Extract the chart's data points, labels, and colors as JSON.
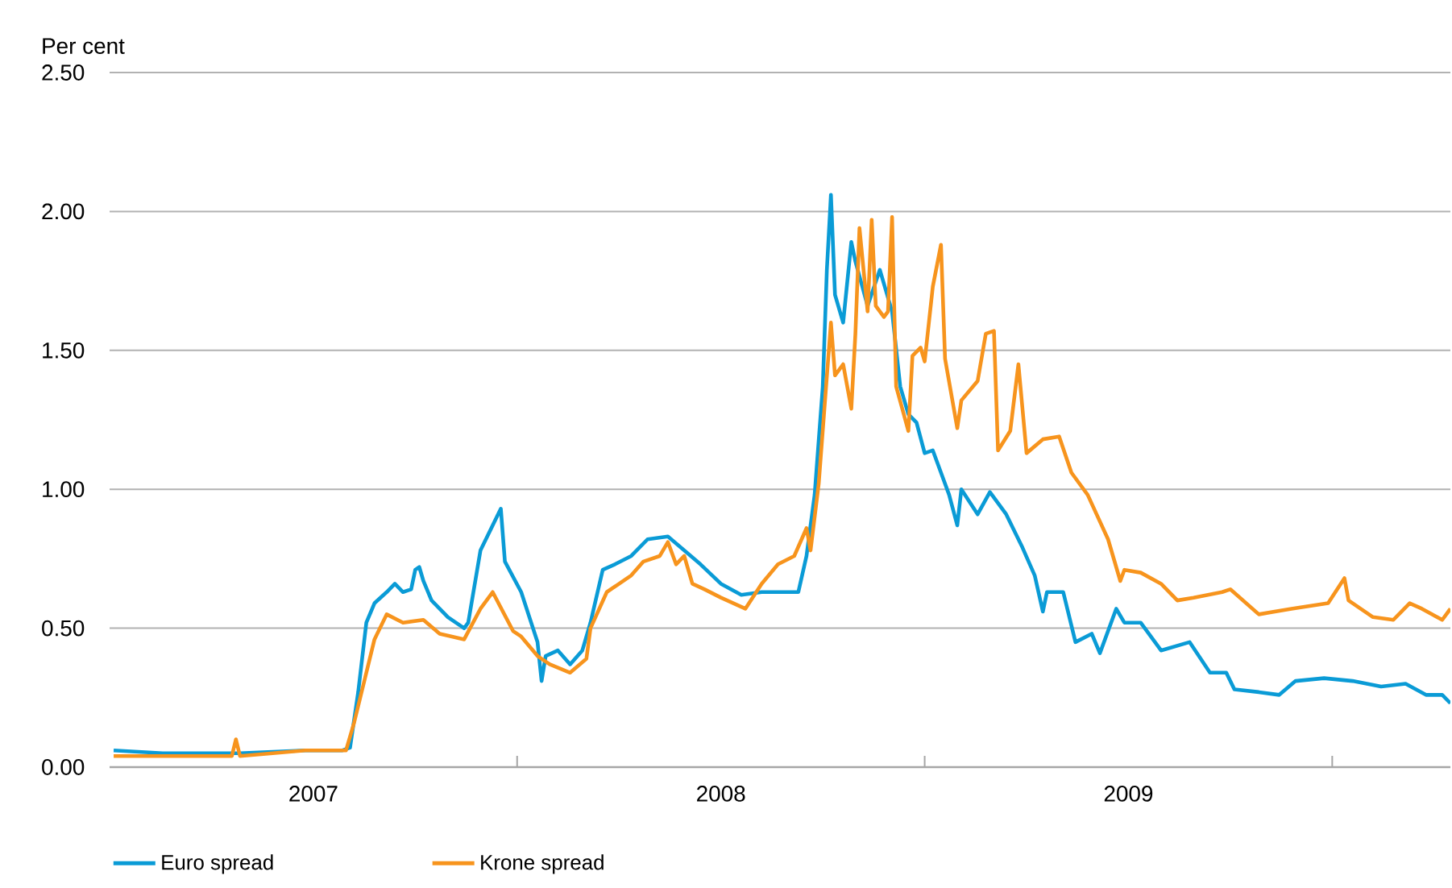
{
  "chart_data": {
    "type": "line",
    "ylabel": "Per cent",
    "xlim": [
      2007,
      2010.29
    ],
    "ylim": [
      0,
      2.5
    ],
    "xticks": [
      {
        "value": 2007.5,
        "label": "2007"
      },
      {
        "value": 2008.5,
        "label": "2008"
      },
      {
        "value": 2009.5,
        "label": "2009"
      },
      {
        "value": 2008,
        "label": null
      },
      {
        "value": 2009,
        "label": null
      },
      {
        "value": 2010,
        "label": null
      }
    ],
    "yticks": [
      {
        "value": 0,
        "label": "0.00"
      },
      {
        "value": 0.5,
        "label": "0.50"
      },
      {
        "value": 1,
        "label": "1.00"
      },
      {
        "value": 1.5,
        "label": "1.50"
      },
      {
        "value": 2,
        "label": "2.00"
      },
      {
        "value": 2.5,
        "label": "2.50"
      }
    ],
    "grid": "y",
    "legend": "bottom",
    "series": [
      {
        "name": "Euro spread",
        "color": "#0a9bd6",
        "x": [
          2007.01,
          2007.13,
          2007.32,
          2007.48,
          2007.57,
          2007.59,
          2007.61,
          2007.63,
          2007.65,
          2007.68,
          2007.7,
          2007.72,
          2007.74,
          2007.75,
          2007.76,
          2007.77,
          2007.79,
          2007.83,
          2007.87,
          2007.88,
          2007.91,
          2007.94,
          2007.96,
          2007.97,
          2008.01,
          2008.05,
          2008.06,
          2008.07,
          2008.1,
          2008.13,
          2008.16,
          2008.18,
          2008.21,
          2008.24,
          2008.28,
          2008.32,
          2008.37,
          2008.41,
          2008.45,
          2008.5,
          2008.55,
          2008.6,
          2008.69,
          2008.71,
          2008.73,
          2008.75,
          2008.76,
          2008.77,
          2008.78,
          2008.8,
          2008.82,
          2008.83,
          2008.86,
          2008.89,
          2008.92,
          2008.94,
          2008.96,
          2008.98,
          2009.0,
          2009.02,
          2009.04,
          2009.06,
          2009.08,
          2009.09,
          2009.13,
          2009.16,
          2009.2,
          2009.24,
          2009.27,
          2009.29,
          2009.3,
          2009.34,
          2009.37,
          2009.41,
          2009.43,
          2009.45,
          2009.47,
          2009.49,
          2009.53,
          2009.58,
          2009.65,
          2009.7,
          2009.74,
          2009.76,
          2009.82,
          2009.87,
          2009.91,
          2009.98,
          2010.05,
          2010.12,
          2010.18,
          2010.23,
          2010.27,
          2010.29
        ],
        "values": [
          0.06,
          0.05,
          0.05,
          0.06,
          0.06,
          0.07,
          0.27,
          0.52,
          0.59,
          0.63,
          0.66,
          0.63,
          0.64,
          0.71,
          0.72,
          0.67,
          0.6,
          0.54,
          0.5,
          0.52,
          0.78,
          0.87,
          0.93,
          0.74,
          0.63,
          0.45,
          0.31,
          0.4,
          0.42,
          0.37,
          0.42,
          0.52,
          0.71,
          0.73,
          0.76,
          0.82,
          0.83,
          0.78,
          0.73,
          0.66,
          0.62,
          0.63,
          0.63,
          0.76,
          0.98,
          1.37,
          1.79,
          2.06,
          1.7,
          1.6,
          1.89,
          1.82,
          1.66,
          1.79,
          1.64,
          1.37,
          1.27,
          1.24,
          1.13,
          1.14,
          1.06,
          0.98,
          0.87,
          1.0,
          0.91,
          0.99,
          0.91,
          0.79,
          0.69,
          0.56,
          0.63,
          0.63,
          0.45,
          0.48,
          0.41,
          0.49,
          0.57,
          0.52,
          0.52,
          0.42,
          0.45,
          0.34,
          0.34,
          0.28,
          0.27,
          0.26,
          0.31,
          0.32,
          0.31,
          0.29,
          0.3,
          0.26,
          0.26,
          0.23
        ]
      },
      {
        "name": "Krone spread",
        "color": "#f7941d",
        "x": [
          2007.01,
          2007.13,
          2007.29,
          2007.3,
          2007.31,
          2007.32,
          2007.48,
          2007.58,
          2007.6,
          2007.63,
          2007.65,
          2007.68,
          2007.72,
          2007.77,
          2007.81,
          2007.87,
          2007.91,
          2007.94,
          2007.99,
          2008.01,
          2008.05,
          2008.08,
          2008.13,
          2008.17,
          2008.18,
          2008.22,
          2008.28,
          2008.31,
          2008.35,
          2008.37,
          2008.39,
          2008.41,
          2008.43,
          2008.46,
          2008.5,
          2008.56,
          2008.6,
          2008.64,
          2008.68,
          2008.71,
          2008.72,
          2008.74,
          2008.77,
          2008.78,
          2008.8,
          2008.82,
          2008.83,
          2008.84,
          2008.86,
          2008.87,
          2008.88,
          2008.9,
          2008.91,
          2008.92,
          2008.93,
          2008.96,
          2008.97,
          2008.99,
          2009.0,
          2009.02,
          2009.04,
          2009.05,
          2009.08,
          2009.09,
          2009.13,
          2009.15,
          2009.17,
          2009.18,
          2009.21,
          2009.23,
          2009.25,
          2009.29,
          2009.33,
          2009.36,
          2009.4,
          2009.45,
          2009.48,
          2009.49,
          2009.53,
          2009.58,
          2009.62,
          2009.66,
          2009.73,
          2009.75,
          2009.82,
          2009.9,
          2009.99,
          2010.03,
          2010.04,
          2010.1,
          2010.15,
          2010.19,
          2010.22,
          2010.27,
          2010.29
        ],
        "values": [
          0.04,
          0.04,
          0.04,
          0.04,
          0.1,
          0.04,
          0.06,
          0.06,
          0.16,
          0.34,
          0.46,
          0.55,
          0.52,
          0.53,
          0.48,
          0.46,
          0.57,
          0.63,
          0.49,
          0.47,
          0.4,
          0.37,
          0.34,
          0.39,
          0.5,
          0.63,
          0.69,
          0.74,
          0.76,
          0.81,
          0.73,
          0.76,
          0.66,
          0.64,
          0.61,
          0.57,
          0.66,
          0.73,
          0.76,
          0.86,
          0.78,
          1.02,
          1.6,
          1.41,
          1.45,
          1.29,
          1.56,
          1.94,
          1.64,
          1.97,
          1.66,
          1.62,
          1.64,
          1.98,
          1.37,
          1.21,
          1.48,
          1.51,
          1.46,
          1.73,
          1.88,
          1.47,
          1.22,
          1.32,
          1.39,
          1.56,
          1.57,
          1.14,
          1.21,
          1.45,
          1.13,
          1.18,
          1.19,
          1.06,
          0.98,
          0.82,
          0.67,
          0.71,
          0.7,
          0.66,
          0.6,
          0.61,
          0.63,
          0.64,
          0.55,
          0.57,
          0.59,
          0.68,
          0.6,
          0.54,
          0.53,
          0.59,
          0.57,
          0.53,
          0.57
        ]
      }
    ]
  }
}
